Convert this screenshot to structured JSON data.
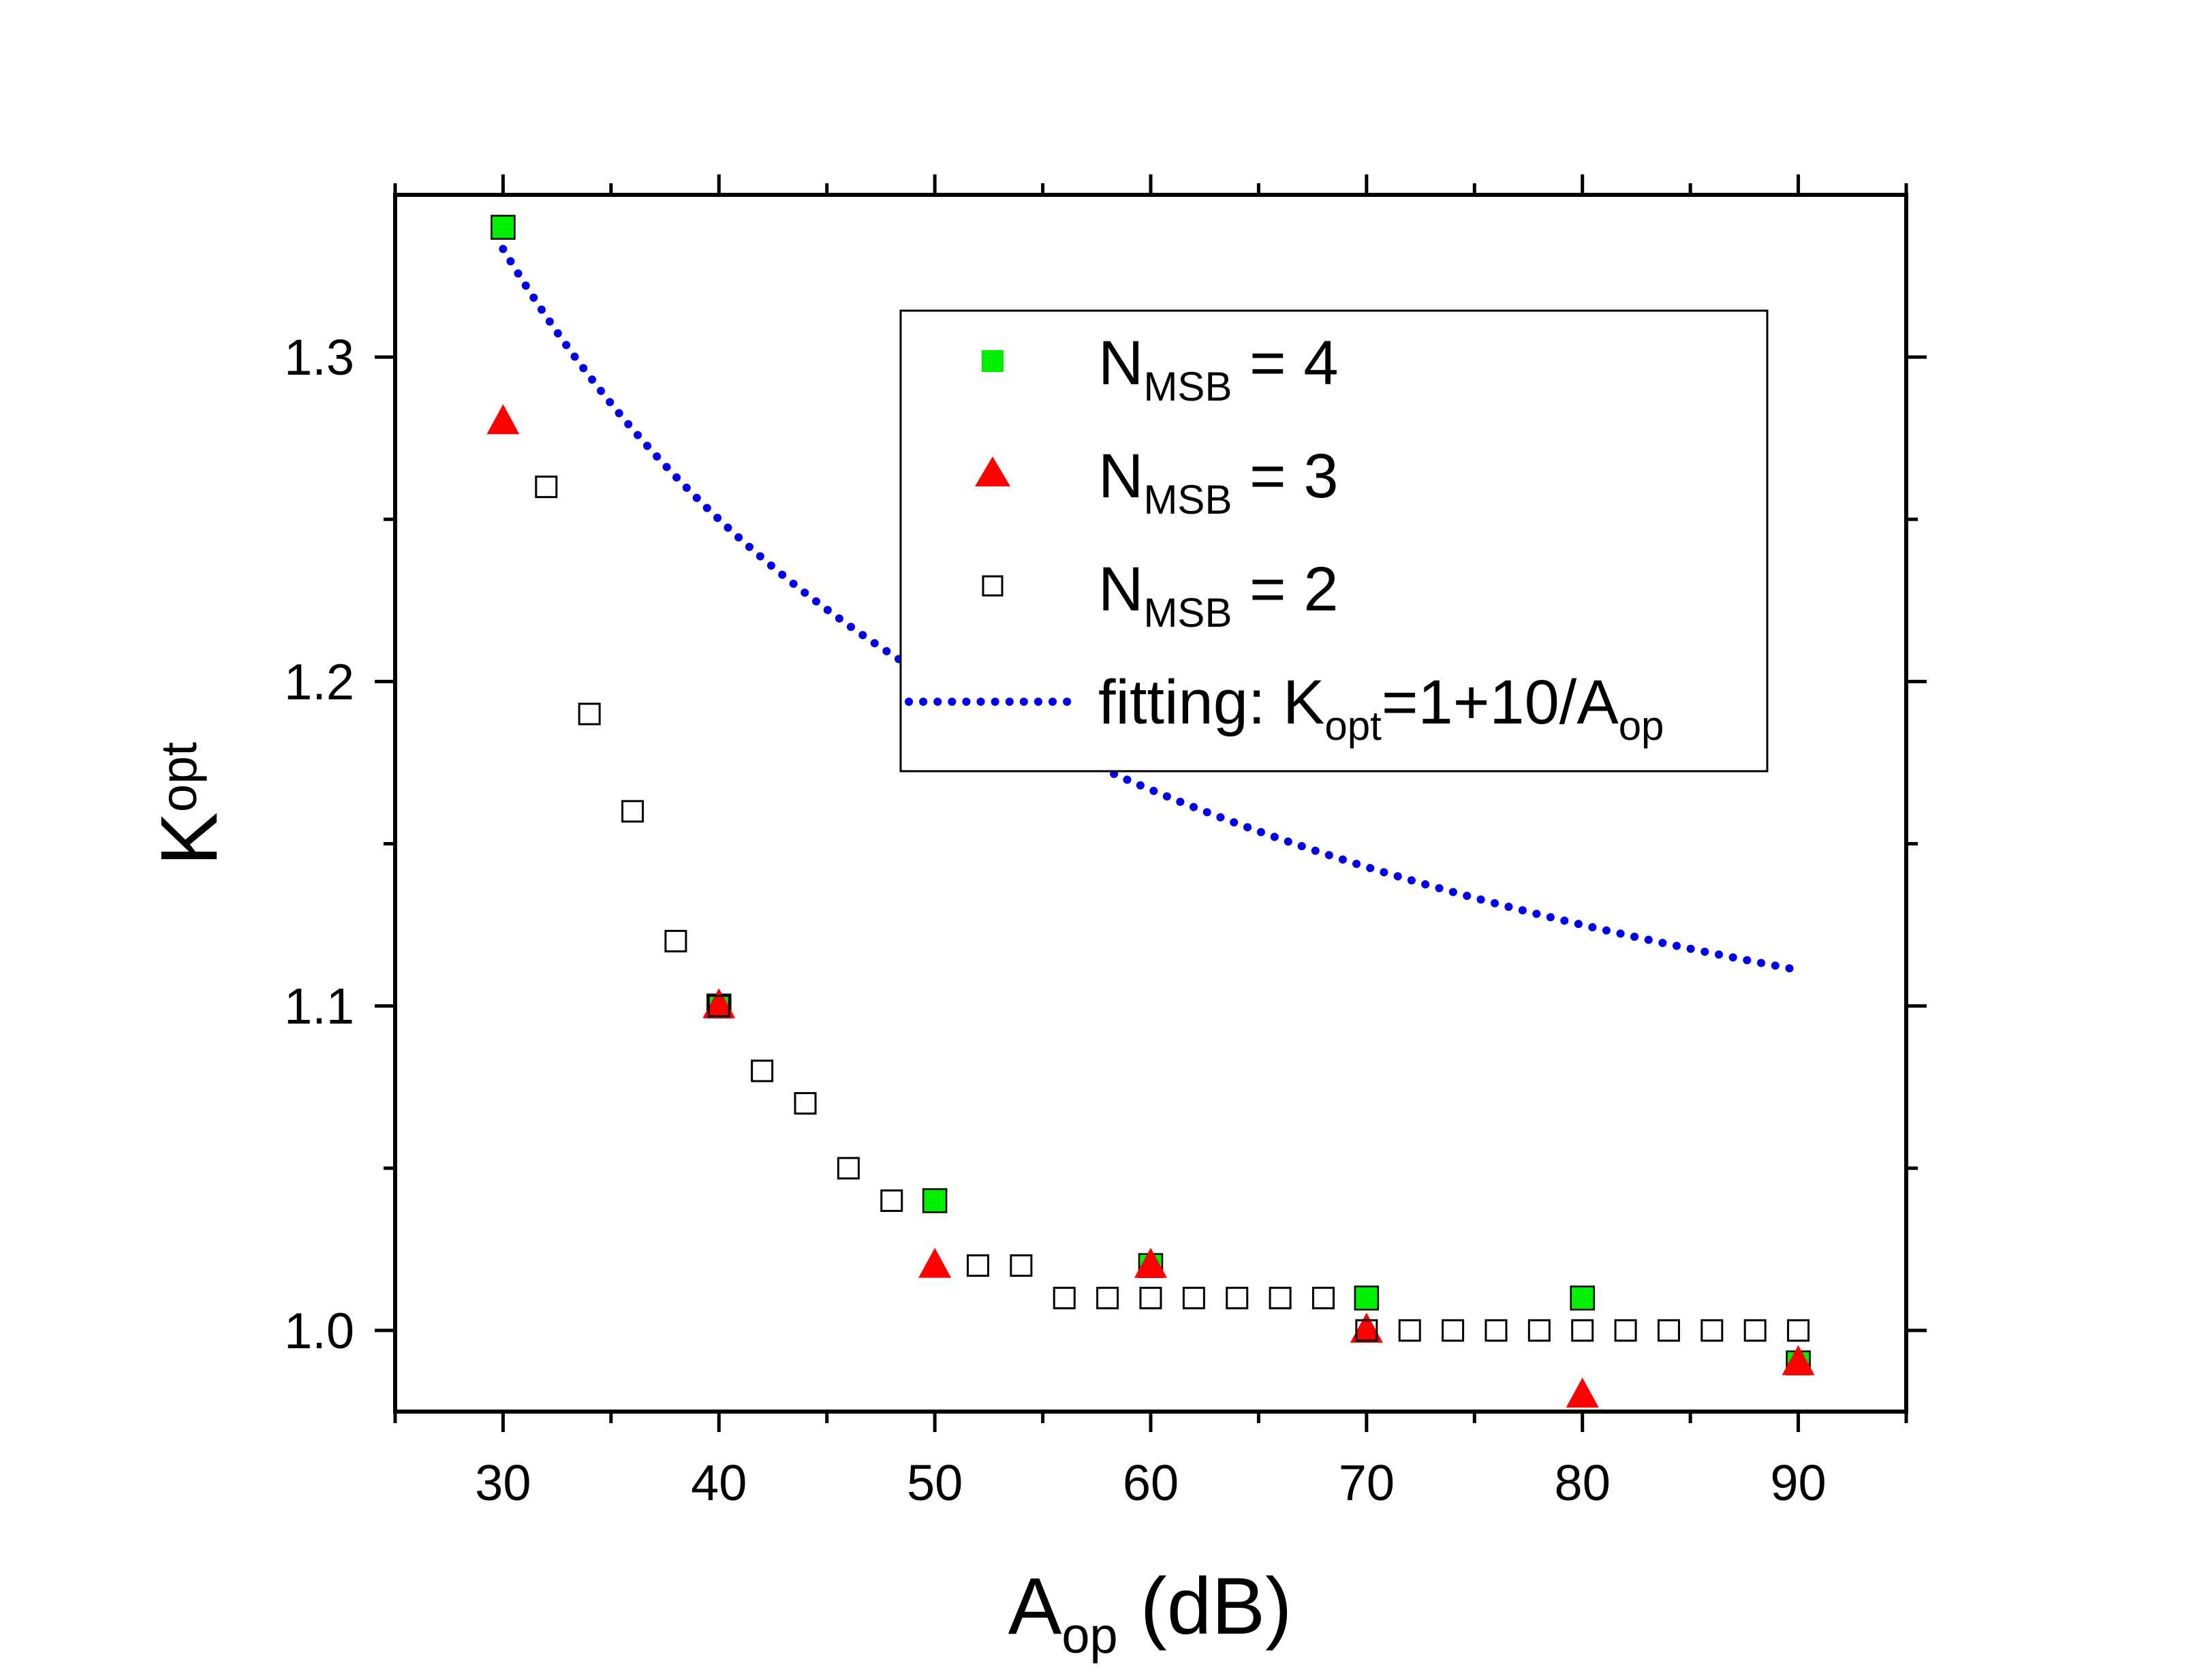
{
  "chart_data": {
    "type": "scatter",
    "xlabel": {
      "main": "A",
      "sub": "op",
      "suffix": " (dB)"
    },
    "ylabel": {
      "main": "K",
      "sub": "opt"
    },
    "xlim": [
      25,
      95
    ],
    "ylim": [
      0.975,
      1.35
    ],
    "xticks": [
      30,
      40,
      50,
      60,
      70,
      80,
      90
    ],
    "xtick_labels": [
      "30",
      "40",
      "50",
      "60",
      "70",
      "80",
      "90"
    ],
    "yticks": [
      1.0,
      1.1,
      1.2,
      1.3
    ],
    "ytick_labels": [
      "1.0",
      "1.1",
      "1.2",
      "1.3"
    ],
    "grid": false,
    "legend_position": "top-right",
    "series": [
      {
        "name": "N_MSB = 4",
        "legend": {
          "main": "N",
          "sub": "MSB",
          "suffix": " = 4"
        },
        "marker": "square-filled",
        "color": "#00ee00",
        "x": [
          30,
          40,
          50,
          60,
          70,
          80,
          90
        ],
        "y": [
          1.34,
          1.1,
          1.04,
          1.02,
          1.01,
          1.01,
          0.99
        ]
      },
      {
        "name": "N_MSB = 3",
        "legend": {
          "main": "N",
          "sub": "MSB",
          "suffix": " = 3"
        },
        "marker": "triangle-filled",
        "color": "#ff0000",
        "x": [
          30,
          40,
          50,
          60,
          70,
          80,
          90
        ],
        "y": [
          1.28,
          1.1,
          1.02,
          1.02,
          1.0,
          0.98,
          0.99
        ]
      },
      {
        "name": "N_MSB = 2",
        "legend": {
          "main": "N",
          "sub": "MSB",
          "suffix": " = 2"
        },
        "marker": "square-open",
        "color": "#000000",
        "x": [
          32,
          34,
          36,
          38,
          40,
          42,
          44,
          46,
          48,
          52,
          54,
          56,
          58,
          60,
          62,
          64,
          66,
          68,
          70,
          72,
          74,
          76,
          78,
          80,
          82,
          84,
          86,
          88,
          90
        ],
        "y": [
          1.26,
          1.19,
          1.16,
          1.12,
          1.1,
          1.08,
          1.07,
          1.05,
          1.04,
          1.02,
          1.02,
          1.01,
          1.01,
          1.01,
          1.01,
          1.01,
          1.01,
          1.01,
          1.0,
          1.0,
          1.0,
          1.0,
          1.0,
          1.0,
          1.0,
          1.0,
          1.0,
          1.0,
          1.0
        ]
      },
      {
        "name": "fitting: K_opt=1+10/A_op",
        "legend": {
          "pre": "fitting: K",
          "sub1": "opt",
          "mid": "=1+10/A",
          "sub2": "op"
        },
        "marker": "dotted-line",
        "color": "#0000ee",
        "function": "1+10/x",
        "x_range": [
          30,
          90
        ]
      }
    ]
  }
}
